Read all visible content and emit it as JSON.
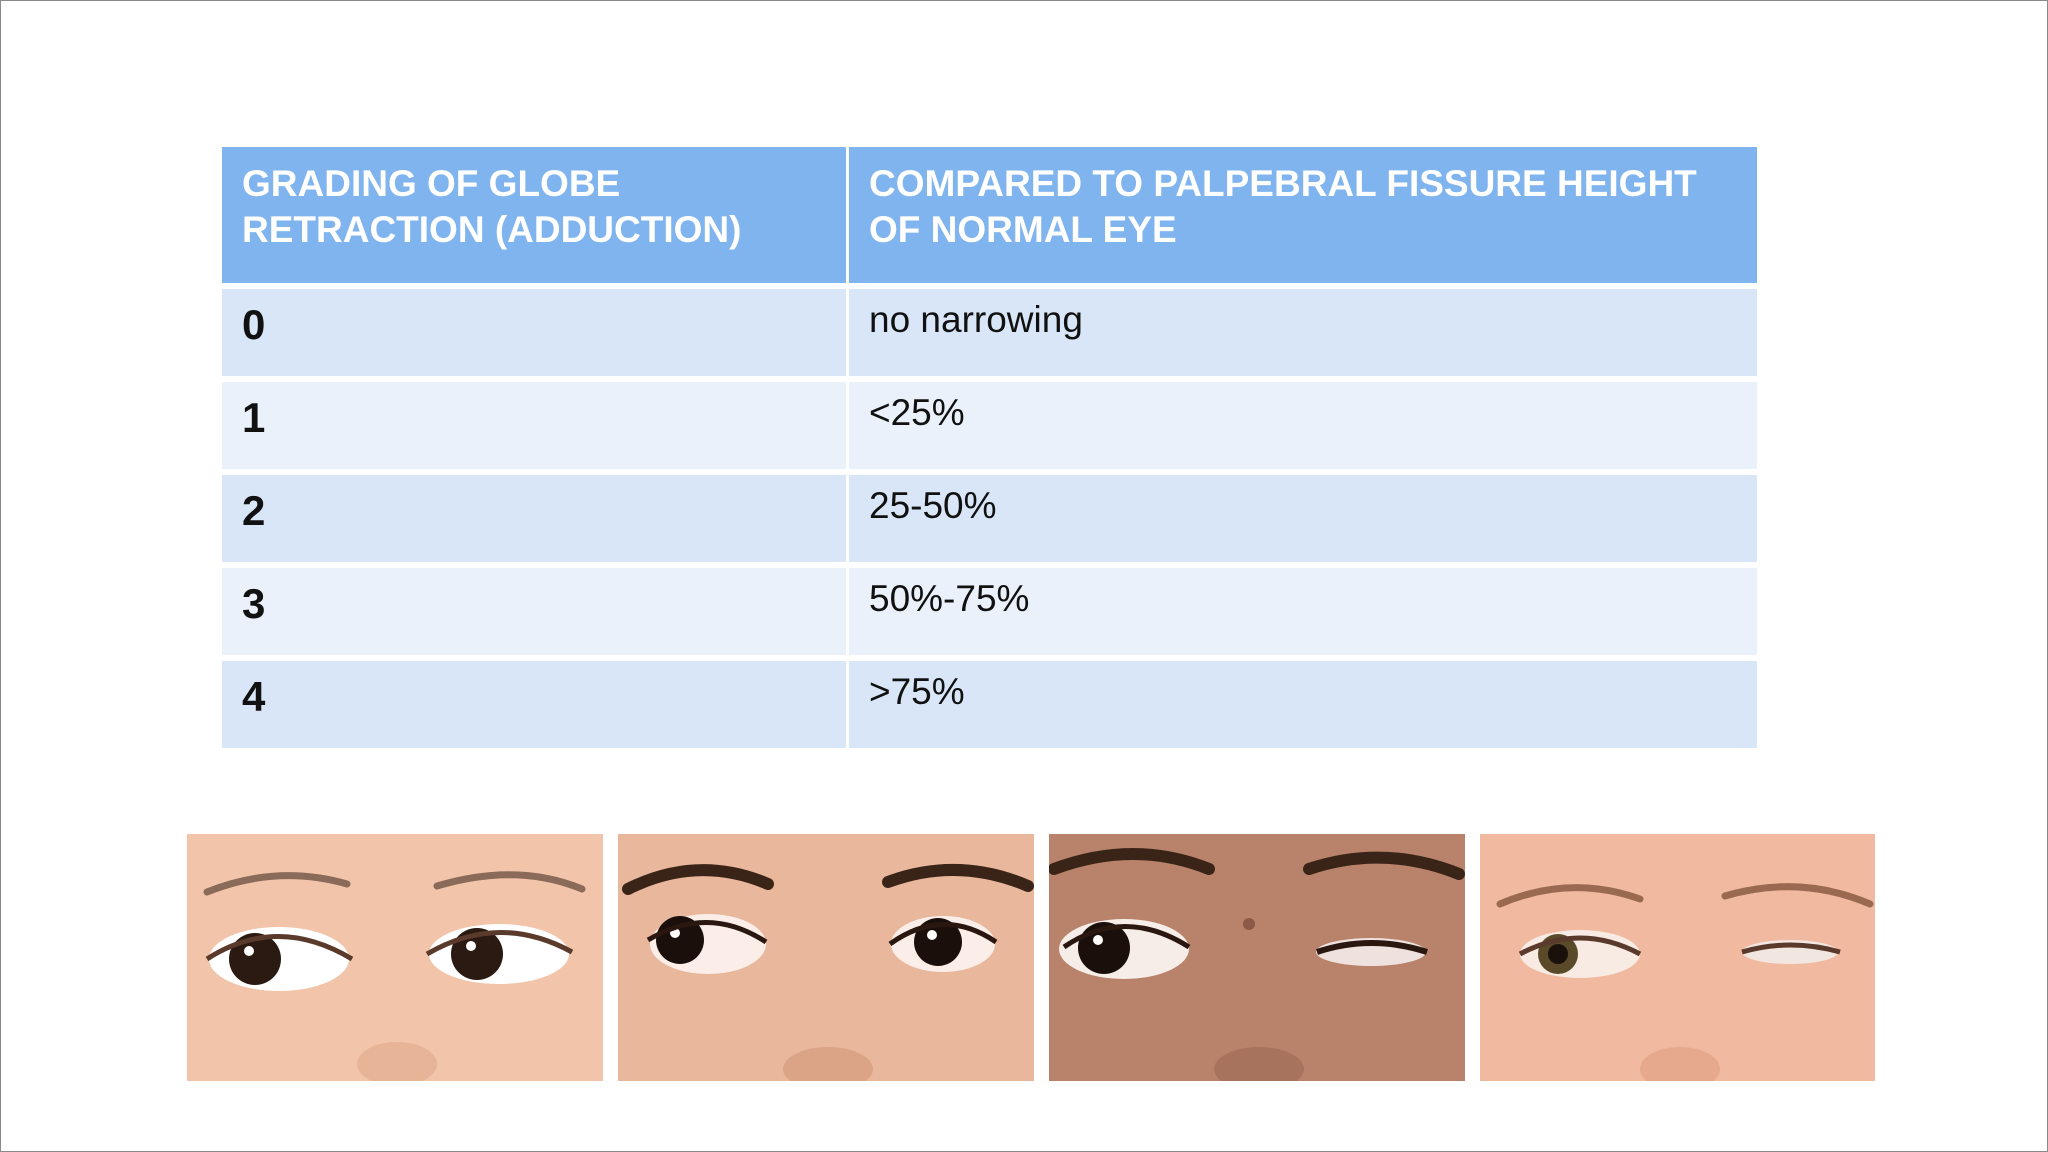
{
  "table": {
    "headers": [
      "GRADING OF GLOBE RETRACTION (ADDUCTION)",
      "COMPARED TO PALPEBRAL FISSURE HEIGHT OF NORMAL EYE"
    ],
    "rows": [
      {
        "grade": "0",
        "description": "no narrowing"
      },
      {
        "grade": "1",
        "description": "<25%"
      },
      {
        "grade": "2",
        "description": "25-50%"
      },
      {
        "grade": "3",
        "description": "50%-75%"
      },
      {
        "grade": "4",
        "description": ">75%"
      }
    ]
  },
  "colors": {
    "header_bg": "#80b4ee",
    "row_bg_dark": "#d9e6f8",
    "row_bg_light": "#eaf1fb"
  },
  "photos": [
    {
      "subject": "eyes-photo-1",
      "skin": "#f2c4aa",
      "iris": "#2a1a12"
    },
    {
      "subject": "eyes-photo-2",
      "skin": "#e8b79c",
      "iris": "#1b0f0b"
    },
    {
      "subject": "eyes-photo-3",
      "skin": "#b8836a",
      "iris": "#1a0f0b"
    },
    {
      "subject": "eyes-photo-4",
      "skin": "#f1b9a0",
      "iris": "#5a4a2a"
    }
  ]
}
